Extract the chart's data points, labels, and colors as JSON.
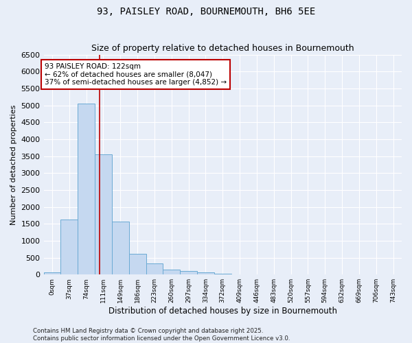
{
  "title": "93, PAISLEY ROAD, BOURNEMOUTH, BH6 5EE",
  "subtitle": "Size of property relative to detached houses in Bournemouth",
  "xlabel": "Distribution of detached houses by size in Bournemouth",
  "ylabel": "Number of detached properties",
  "bar_color": "#c5d8f0",
  "bar_edge_color": "#6aaad4",
  "background_color": "#e8eef8",
  "grid_color": "#ffffff",
  "vline_x": 122,
  "vline_color": "#bb0000",
  "annotation_line1": "93 PAISLEY ROAD: 122sqm",
  "annotation_line2": "← 62% of detached houses are smaller (8,047)",
  "annotation_line3": "37% of semi-detached houses are larger (4,852) →",
  "annotation_box_color": "#bb0000",
  "bins": [
    0,
    37,
    74,
    111,
    148,
    185,
    222,
    259,
    296,
    333,
    370,
    407,
    444,
    481,
    518,
    555,
    592,
    629,
    666,
    703,
    740,
    777
  ],
  "bin_labels": [
    "0sqm",
    "37sqm",
    "74sqm",
    "111sqm",
    "149sqm",
    "186sqm",
    "223sqm",
    "260sqm",
    "297sqm",
    "334sqm",
    "372sqm",
    "409sqm",
    "446sqm",
    "483sqm",
    "520sqm",
    "557sqm",
    "594sqm",
    "632sqm",
    "669sqm",
    "706sqm",
    "743sqm"
  ],
  "bar_heights": [
    60,
    1620,
    5050,
    3560,
    1560,
    620,
    330,
    150,
    110,
    60,
    30,
    5,
    0,
    0,
    0,
    0,
    0,
    0,
    0,
    0,
    0
  ],
  "ylim": [
    0,
    6500
  ],
  "yticks": [
    0,
    500,
    1000,
    1500,
    2000,
    2500,
    3000,
    3500,
    4000,
    4500,
    5000,
    5500,
    6000,
    6500
  ],
  "footer": "Contains HM Land Registry data © Crown copyright and database right 2025.\nContains public sector information licensed under the Open Government Licence v3.0.",
  "figsize": [
    6.0,
    5.0
  ],
  "dpi": 100
}
